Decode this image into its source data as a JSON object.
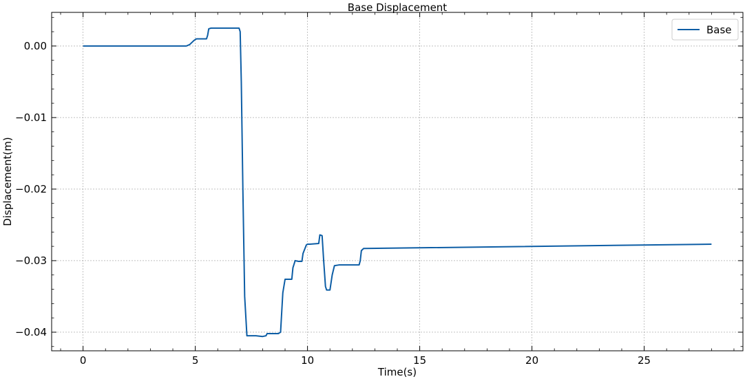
{
  "chart_data": {
    "type": "line",
    "title": "Base Displacement",
    "xlabel": "Time(s)",
    "ylabel": "Displacement(m)",
    "xlim": [
      -1.4,
      29.4
    ],
    "ylim": [
      -0.0426,
      0.0047
    ],
    "xticks": [
      0,
      5,
      10,
      15,
      20,
      25
    ],
    "xtick_labels": [
      "0",
      "5",
      "10",
      "15",
      "20",
      "25"
    ],
    "yticks": [
      0.0,
      -0.01,
      -0.02,
      -0.03,
      -0.04
    ],
    "ytick_labels": [
      "0.00",
      "−0.01",
      "−0.02",
      "−0.03",
      "−0.04"
    ],
    "grid": true,
    "legend": {
      "position": "top-right",
      "entries": [
        "Base"
      ]
    },
    "series": [
      {
        "name": "Base",
        "color": "#0c5da5",
        "x": [
          0,
          4.6,
          4.75,
          4.95,
          5.05,
          5.5,
          5.55,
          5.6,
          5.7,
          6.95,
          7.0,
          7.05,
          7.12,
          7.2,
          7.3,
          7.7,
          8.0,
          8.15,
          8.2,
          8.7,
          8.8,
          8.9,
          9.0,
          9.3,
          9.35,
          9.45,
          9.6,
          9.75,
          9.8,
          9.95,
          10.0,
          10.1,
          10.5,
          10.55,
          10.65,
          10.72,
          10.8,
          10.85,
          11.0,
          11.1,
          11.2,
          11.4,
          12.3,
          12.35,
          12.4,
          12.5,
          28.0
        ],
        "y": [
          0.0,
          0.0,
          0.0002,
          0.0008,
          0.001,
          0.001,
          0.0015,
          0.0024,
          0.0025,
          0.0025,
          0.002,
          -0.005,
          -0.02,
          -0.035,
          -0.0405,
          -0.0405,
          -0.0406,
          -0.0405,
          -0.0402,
          -0.0402,
          -0.04,
          -0.0345,
          -0.0326,
          -0.0326,
          -0.031,
          -0.03,
          -0.0301,
          -0.0301,
          -0.029,
          -0.0278,
          -0.0277,
          -0.0277,
          -0.0276,
          -0.0264,
          -0.0265,
          -0.03,
          -0.0336,
          -0.0341,
          -0.0341,
          -0.032,
          -0.0307,
          -0.0306,
          -0.0306,
          -0.03,
          -0.0286,
          -0.0283,
          -0.0277
        ]
      }
    ]
  }
}
